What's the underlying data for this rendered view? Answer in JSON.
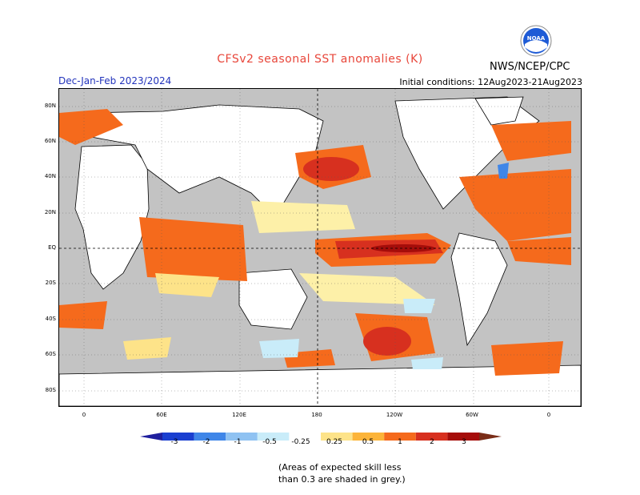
{
  "title": "CFSv2 seasonal SST anomalies (K)",
  "agency": "NWS/NCEP/CPC",
  "logo": {
    "text": "NOAA"
  },
  "season": "Dec-Jan-Feb 2023/2024",
  "initial_conditions": "Initial conditions: 12Aug2023-21Aug2023",
  "lat_labels": [
    "80N",
    "60N",
    "40N",
    "20N",
    "EQ",
    "20S",
    "40S",
    "60S",
    "80S"
  ],
  "lon_labels": [
    "0",
    "60E",
    "120E",
    "180",
    "120W",
    "60W",
    "0"
  ],
  "colorbar": {
    "labels": [
      "-3",
      "-2",
      "-1",
      "-0.5",
      "-0.25",
      "0.25",
      "0.5",
      "1",
      "2",
      "3"
    ],
    "colors": [
      "#1f1f9e",
      "#1a3fd0",
      "#3f86e8",
      "#8fc2f2",
      "#c9ecf9",
      "#ffffff",
      "#fde389",
      "#fcb439",
      "#f56a1c",
      "#d7301f",
      "#a50d0a",
      "#7a2d18"
    ]
  },
  "note": [
    "(Areas of expected skill less",
    "than 0.3 are shaded in grey.)"
  ],
  "map_colors": {
    "grey": "#c3c3c3",
    "pale": "#fdf0a8",
    "yellow": "#fde389",
    "orange": "#f56a1c",
    "red": "#d7301f",
    "darkred": "#a50d0a",
    "lightblue": "#c9ecf9",
    "blue": "#3f86e8"
  }
}
